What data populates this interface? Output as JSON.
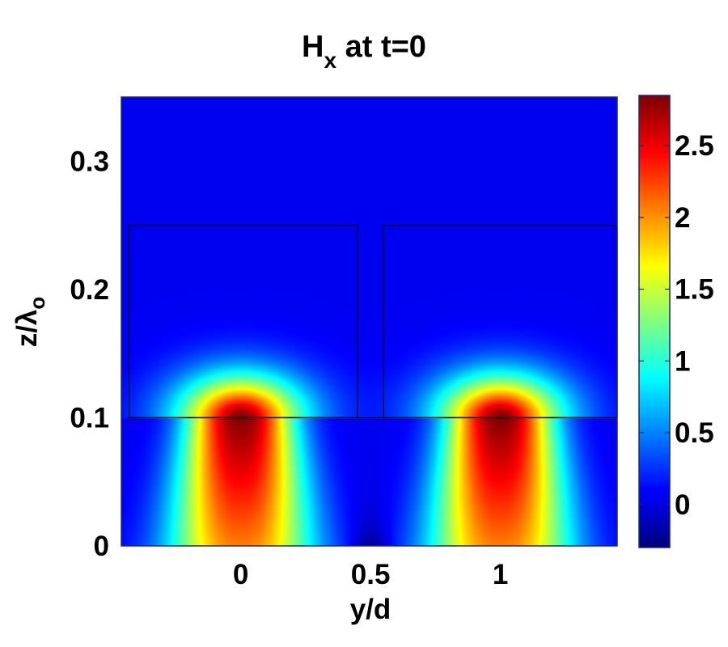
{
  "chart_data": {
    "type": "heatmap",
    "title": {
      "main": "H",
      "subscript": "x",
      "rest": " at t=0"
    },
    "xlabel": "y/d",
    "ylabel": {
      "main": "z/λ",
      "subscript": "o"
    },
    "x_ticks": [
      "0",
      "0.5",
      "1"
    ],
    "x_tick_values": [
      0,
      0.5,
      1
    ],
    "y_ticks": [
      "0",
      "0.1",
      "0.2",
      "0.3"
    ],
    "y_tick_values": [
      0,
      0.1,
      0.2,
      0.3
    ],
    "xlim": [
      -0.46,
      1.45
    ],
    "ylim": [
      0,
      0.35
    ],
    "colorbar": {
      "ticks": [
        "0",
        "0.5",
        "1",
        "1.5",
        "2",
        "2.5"
      ],
      "tick_values": [
        0,
        0.5,
        1,
        1.5,
        2,
        2.5
      ],
      "range": [
        -0.3,
        2.85
      ],
      "colormap": "jet"
    },
    "field": {
      "peaks": [
        {
          "y": 0,
          "z": 0.1,
          "value": 2.85
        },
        {
          "y": 1,
          "z": 0.1,
          "value": 2.85
        }
      ],
      "minimum": {
        "y": 0.5,
        "z": 0,
        "value": -0.3
      },
      "background_value": 0.05
    },
    "structures": {
      "interface_z": 0.1,
      "top_z": 0.25,
      "blocks": [
        {
          "y_start": -0.43,
          "y_end": 0.45
        },
        {
          "y_start": 0.55,
          "y_end": 1.45
        }
      ]
    }
  }
}
